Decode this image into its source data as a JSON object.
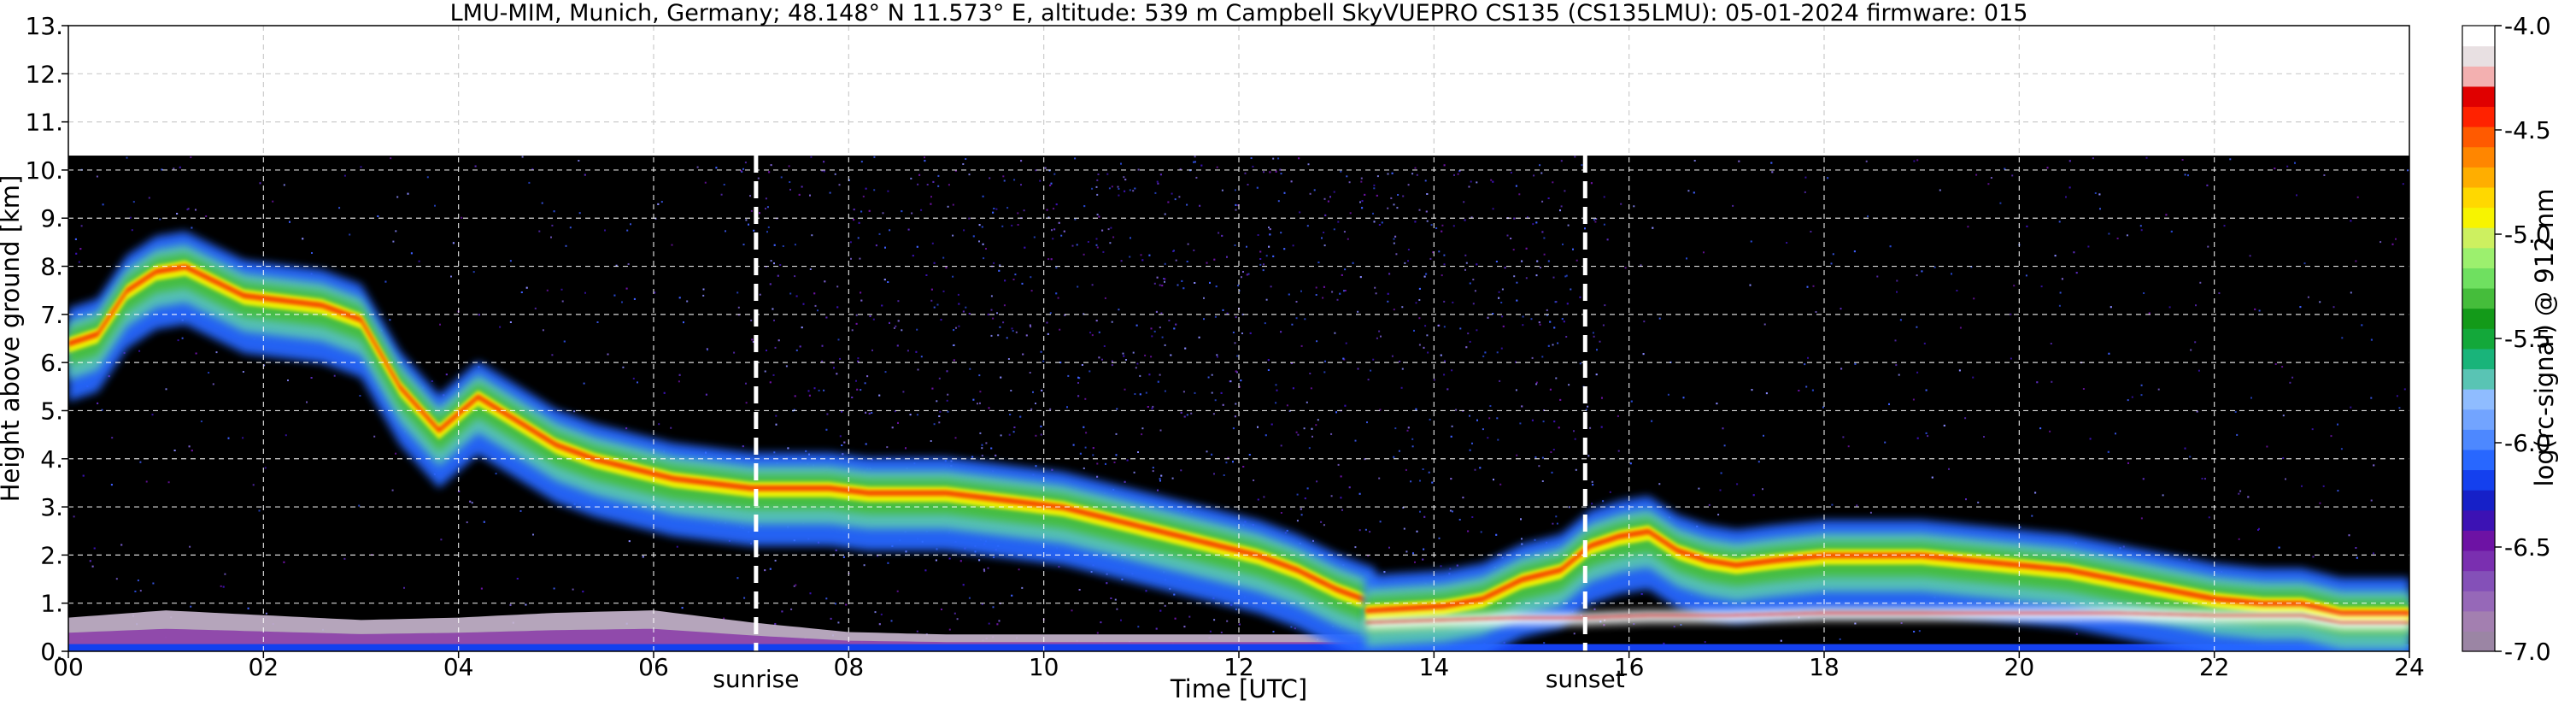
{
  "chart_data": {
    "type": "heatmap",
    "title": "LMU-MIM, Munich, Germany; 48.148° N 11.573° E, altitude: 539 m    Campbell SkyVUEPRO CS135 (CS135LMU): 05-01-2024    firmware: 015",
    "xlabel": "Time [UTC]",
    "ylabel": "Height above ground [km]",
    "xlim": [
      0,
      24
    ],
    "ylim": [
      0,
      13
    ],
    "x_tick_labels": [
      "00",
      "02",
      "04",
      "06",
      "08",
      "10",
      "12",
      "14",
      "16",
      "18",
      "20",
      "22",
      "24"
    ],
    "y_tick_labels": [
      "0.",
      "1.",
      "2.",
      "3.",
      "4.",
      "5.",
      "6.",
      "7.",
      "8.",
      "9.",
      "10.",
      "11.",
      "12.",
      "13."
    ],
    "grid": true,
    "data_top_km": 10.3,
    "events": [
      {
        "label": "sunrise",
        "time": 7.05
      },
      {
        "label": "sunset",
        "time": 15.55
      }
    ],
    "colorbar": {
      "label": "log(rc-signal) @ 912 nm",
      "range": [
        -7.0,
        -4.0
      ],
      "tick_labels": [
        "-7.0",
        "-6.5",
        "-6.0",
        "-5.5",
        "-5.0",
        "-4.5",
        "-4.0"
      ],
      "colors": [
        "#9b85a4",
        "#a37fb0",
        "#9668b8",
        "#8450b8",
        "#7a2fb0",
        "#6d12a4",
        "#3c12b4",
        "#1620c8",
        "#1440ee",
        "#2867ff",
        "#4d88ff",
        "#72a4ff",
        "#8fbcff",
        "#59c4b4",
        "#19b47a",
        "#13a83a",
        "#139a19",
        "#45bd3b",
        "#6fe060",
        "#9cf06e",
        "#cdf060",
        "#f7f400",
        "#ffd800",
        "#ffae00",
        "#ff8600",
        "#ff5a00",
        "#ff2200",
        "#e00000",
        "#f3b0b0",
        "#e8e0e2",
        "#ffffff"
      ]
    },
    "cloud_layers": [
      {
        "t": [
          0.0,
          0.3,
          0.6,
          0.9,
          1.2,
          1.5,
          1.8,
          2.2,
          2.6,
          3.0,
          3.4,
          3.8,
          4.2,
          4.6,
          5.0,
          5.4,
          5.8,
          6.2,
          6.6,
          7.0,
          7.4,
          7.8,
          8.2,
          8.6,
          9.0,
          9.4,
          9.8,
          10.2,
          10.6,
          11.0,
          11.4,
          11.8,
          12.2,
          12.6,
          13.0,
          13.4
        ],
        "h": [
          6.4,
          6.6,
          7.5,
          7.9,
          8.0,
          7.7,
          7.4,
          7.3,
          7.2,
          6.9,
          5.5,
          4.6,
          5.3,
          4.8,
          4.3,
          4.0,
          3.8,
          3.6,
          3.5,
          3.4,
          3.4,
          3.4,
          3.3,
          3.3,
          3.3,
          3.2,
          3.1,
          3.0,
          2.8,
          2.6,
          2.4,
          2.2,
          2.0,
          1.7,
          1.3,
          1.0
        ]
      },
      {
        "t": [
          13.3,
          13.7,
          14.1,
          14.5,
          14.9,
          15.3,
          15.6,
          15.9,
          16.2,
          16.5,
          16.8,
          17.1,
          17.5,
          18.0,
          18.5,
          19.0,
          19.5,
          20.0,
          20.5,
          21.0,
          21.5,
          22.0,
          22.5,
          22.9,
          23.3,
          23.7,
          24.0
        ],
        "h": [
          0.85,
          0.9,
          0.95,
          1.1,
          1.5,
          1.7,
          2.2,
          2.4,
          2.5,
          2.1,
          1.9,
          1.8,
          1.9,
          2.0,
          2.0,
          2.0,
          1.9,
          1.8,
          1.7,
          1.5,
          1.3,
          1.1,
          1.0,
          1.0,
          0.8,
          0.8,
          0.8
        ]
      },
      {
        "t": [
          13.3,
          14.0,
          14.8,
          15.5,
          16.2,
          17.0,
          18.0,
          19.0,
          20.0,
          21.0,
          22.0,
          22.9,
          23.3,
          24.0
        ],
        "h": [
          0.6,
          0.65,
          0.7,
          0.7,
          0.75,
          0.75,
          0.8,
          0.8,
          0.8,
          0.8,
          0.75,
          0.75,
          0.6,
          0.6
        ]
      }
    ],
    "boundary_layer": {
      "t": [
        0,
        1,
        2,
        3,
        4,
        5,
        6,
        7,
        8,
        9,
        10,
        11,
        12,
        13.3
      ],
      "h": [
        0.7,
        0.85,
        0.75,
        0.65,
        0.7,
        0.8,
        0.85,
        0.6,
        0.4,
        0.35,
        0.35,
        0.35,
        0.35,
        0.35
      ]
    }
  }
}
